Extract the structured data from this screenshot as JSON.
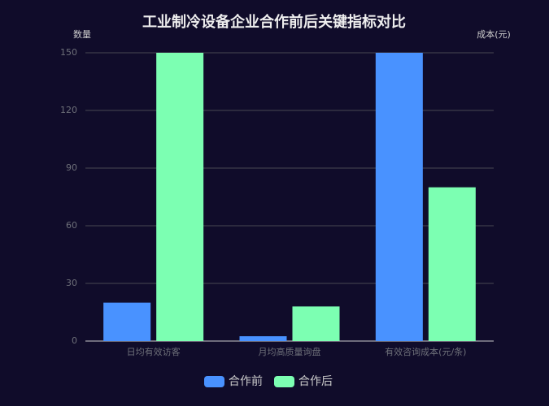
{
  "chart_data": {
    "type": "bar",
    "title": "工业制冷设备企业合作前后关键指标对比",
    "y_label": "数量",
    "y2_label": "成本(元)",
    "categories": [
      "日均有效访客",
      "月均高质量询盘",
      "有效咨询成本(元/条)"
    ],
    "series": [
      {
        "name": "合作前",
        "color": "#4992ff",
        "values": [
          20,
          2.5,
          150
        ]
      },
      {
        "name": "合作后",
        "color": "#7cffb2",
        "values": [
          150,
          18,
          80
        ]
      }
    ],
    "ylim": [
      0,
      150
    ],
    "yticks": [
      0,
      30,
      60,
      90,
      120,
      150
    ],
    "grid": true,
    "legend": "bottom"
  }
}
